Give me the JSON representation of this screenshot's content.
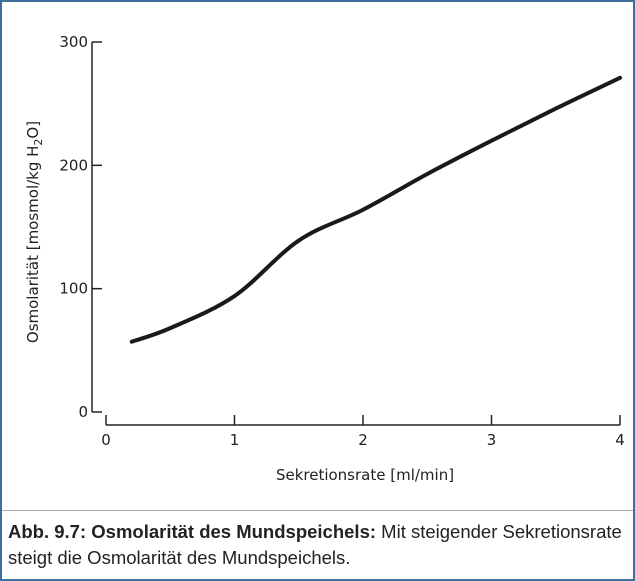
{
  "chart_data": {
    "type": "line",
    "ylabel": {
      "text": "Osmolarität [mosmol/kg H",
      "sub": "2",
      "tail": "O]"
    },
    "xlabel": "Sekretionsrate [ml/min]",
    "x": [
      0.2,
      0.5,
      1,
      1.5,
      2,
      2.5,
      3,
      3.5,
      4
    ],
    "series": [
      {
        "color": "#1a1a1a",
        "values": [
          57,
          68,
          94,
          139,
          164,
          193,
          220,
          246,
          271
        ]
      }
    ],
    "xlim": [
      0,
      4
    ],
    "xticks": [
      0,
      1,
      2,
      3,
      4
    ],
    "ylim": [
      0,
      300
    ],
    "yticks": [
      0,
      100,
      200,
      300
    ]
  },
  "caption": {
    "bold": "Abb. 9.7: Osmolarität des Mundspeichels:",
    "text": "Mit steigender Sekretionsrate steigt die Osmolarität des Mundspeichels."
  }
}
